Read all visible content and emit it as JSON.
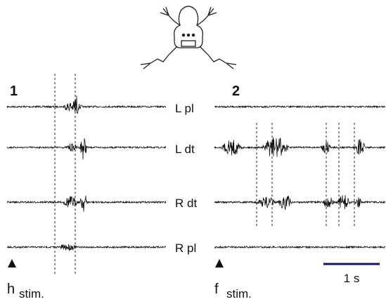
{
  "panels": [
    {
      "label": "1",
      "stim_letter": "h",
      "stim_text": "stim."
    },
    {
      "label": "2",
      "stim_letter": "f",
      "stim_text": "stim."
    }
  ],
  "channels": [
    "L pl",
    "L dt",
    "R dt",
    "R pl"
  ],
  "scale_bar": "1 s"
}
